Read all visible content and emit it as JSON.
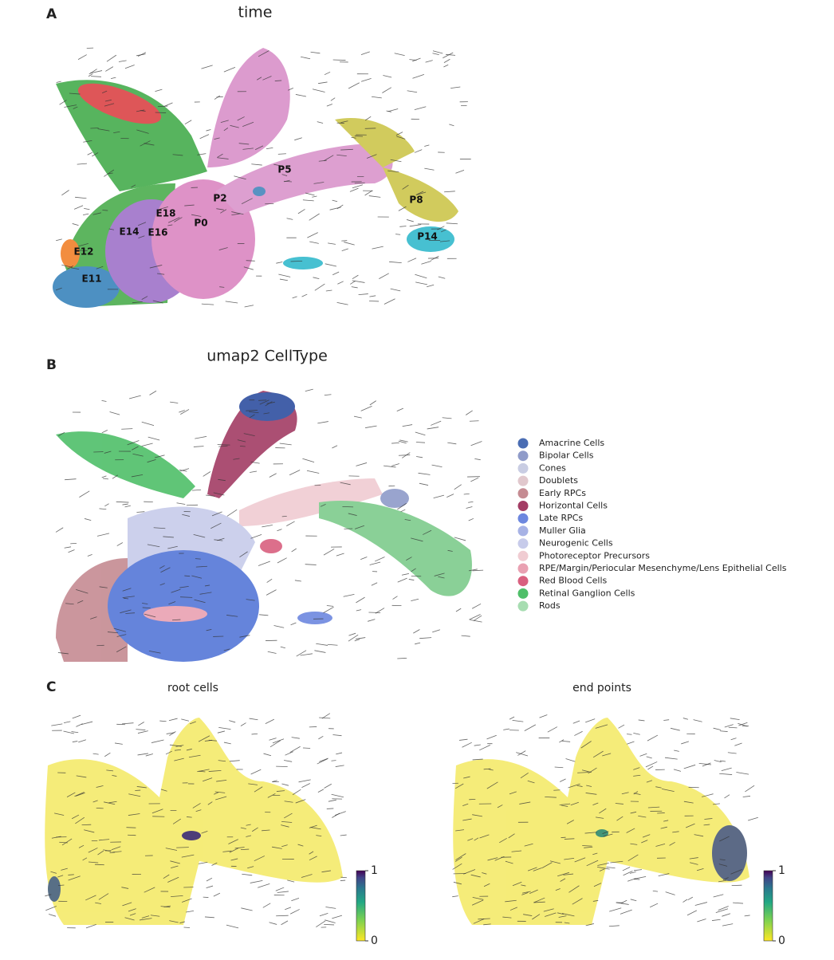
{
  "panels": [
    {
      "letter": "A",
      "title": "time",
      "labels": [
        "E11",
        "E12",
        "E14",
        "E16",
        "E18",
        "P0",
        "P2",
        "P5",
        "P8",
        "P14"
      ]
    },
    {
      "letter": "B",
      "title": "umap2 CellType",
      "legend": [
        {
          "name": "Amacrine Cells",
          "color": "#4a6db3"
        },
        {
          "name": "Bipolar Cells",
          "color": "#8f9bc9"
        },
        {
          "name": "Cones",
          "color": "#c9cde3"
        },
        {
          "name": "Doublets",
          "color": "#e1c8cd"
        },
        {
          "name": "Early RPCs",
          "color": "#c58b92"
        },
        {
          "name": "Horizontal Cells",
          "color": "#a33c64"
        },
        {
          "name": "Late RPCs",
          "color": "#6d87df"
        },
        {
          "name": "Muller Glia",
          "color": "#a7b2e5"
        },
        {
          "name": "Neurogenic Cells",
          "color": "#c7cbea"
        },
        {
          "name": "Photoreceptor Precursors",
          "color": "#f0ccd2"
        },
        {
          "name": "RPE/Margin/Periocular Mesenchyme/Lens Epithelial Cells",
          "color": "#e9a1b2"
        },
        {
          "name": "Red Blood Cells",
          "color": "#d9607f"
        },
        {
          "name": "Retinal Ganglion Cells",
          "color": "#4fbf69"
        },
        {
          "name": "Rods",
          "color": "#a7ddb1"
        }
      ]
    },
    {
      "letter": "C",
      "plots": [
        {
          "title": "root cells",
          "colorbar": {
            "ticks": [
              1,
              0
            ]
          }
        },
        {
          "title": "end points",
          "colorbar": {
            "ticks": [
              1,
              0
            ]
          }
        }
      ]
    }
  ]
}
